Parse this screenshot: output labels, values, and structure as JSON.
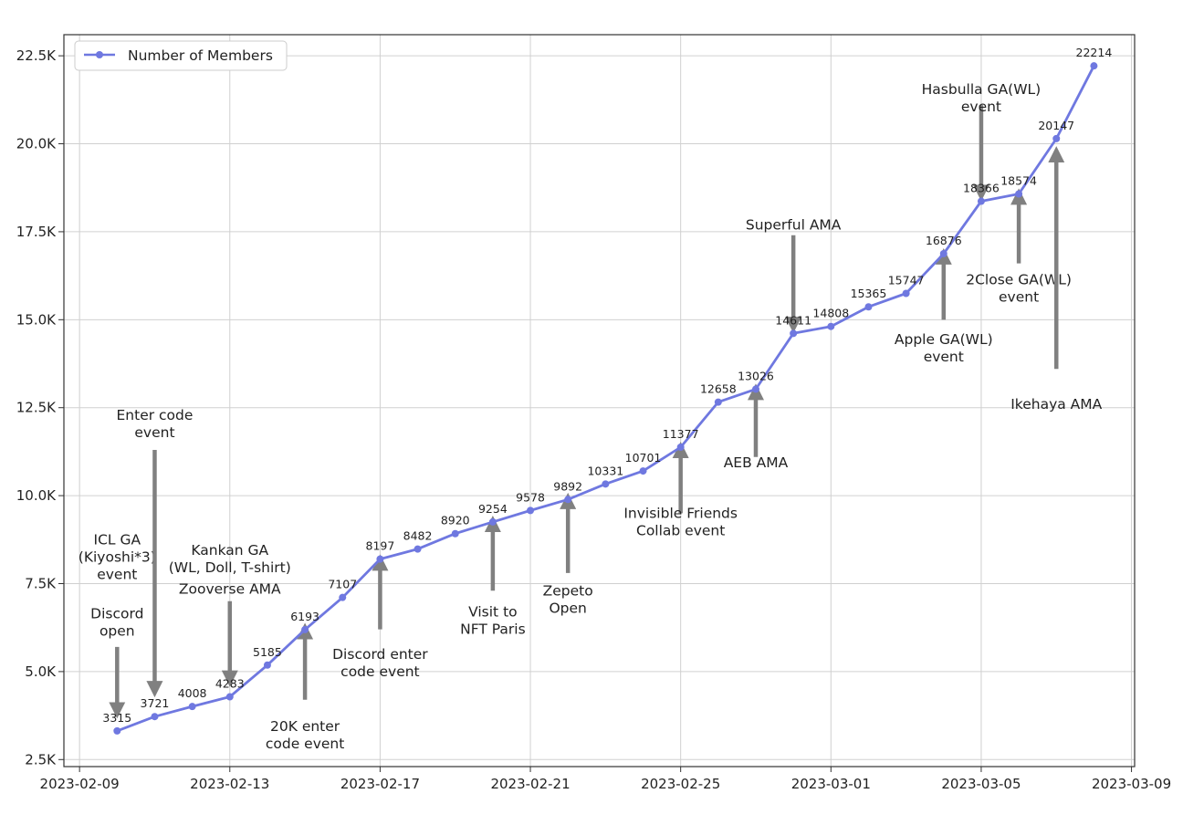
{
  "chart_data": {
    "type": "line",
    "x": [
      "2023-02-10",
      "2023-02-11",
      "2023-02-12",
      "2023-02-13",
      "2023-02-14",
      "2023-02-15",
      "2023-02-16",
      "2023-02-17",
      "2023-02-18",
      "2023-02-19",
      "2023-02-20",
      "2023-02-21",
      "2023-02-22",
      "2023-02-23",
      "2023-02-24",
      "2023-02-25",
      "2023-02-26",
      "2023-02-27",
      "2023-02-28",
      "2023-03-01",
      "2023-03-02",
      "2023-03-03",
      "2023-03-04",
      "2023-03-05",
      "2023-03-06",
      "2023-03-07",
      "2023-03-08"
    ],
    "series": [
      {
        "name": "Number of Members",
        "color": "#6f78e0",
        "values": [
          3315,
          3721,
          4008,
          4283,
          5185,
          6193,
          7107,
          8197,
          8482,
          8920,
          9254,
          9578,
          9892,
          10331,
          10701,
          11377,
          12658,
          13026,
          14611,
          14808,
          15365,
          15747,
          16876,
          18366,
          18574,
          20147,
          22214
        ]
      }
    ],
    "data_labels": [
      "3315",
      "3721",
      "4008",
      "4283",
      "5185",
      "6193",
      "7107",
      "8197",
      "8482",
      "8920",
      "9254",
      "9578",
      "9892",
      "10331",
      "10701",
      "11377",
      "12658",
      "13026",
      "14611",
      "14808",
      "15365",
      "15747",
      "16876",
      "18366",
      "18574",
      "20147",
      "22214"
    ],
    "xticks": [
      "2023-02-09",
      "2023-02-13",
      "2023-02-17",
      "2023-02-21",
      "2023-02-25",
      "2023-03-01",
      "2023-03-05",
      "2023-03-09"
    ],
    "yticks": [
      2500,
      5000,
      7500,
      10000,
      12500,
      15000,
      17500,
      20000,
      22500
    ],
    "ytick_labels": [
      "2.5K",
      "5.0K",
      "7.5K",
      "10.0K",
      "12.5K",
      "15.0K",
      "17.5K",
      "20.0K",
      "22.5K"
    ],
    "xlim": [
      "2023-02-08T14:00",
      "2023-03-09T02:00"
    ],
    "ylim": [
      2300,
      23100
    ],
    "grid": true,
    "legend": "upper-left",
    "annotations": [
      {
        "lines": [
          "Discord",
          "open"
        ],
        "x": "2023-02-10",
        "dir": "down",
        "text_y": 6900,
        "tail_y": 5700,
        "head_y": 3900
      },
      {
        "lines": [
          "ICL GA",
          "(Kiyoshi*3)",
          "event"
        ],
        "x": "2023-02-10",
        "dir": "none",
        "text_y": 9000
      },
      {
        "lines": [
          "Enter code",
          "event"
        ],
        "x": "2023-02-11",
        "dir": "down",
        "text_y": 12550,
        "tail_y": 11300,
        "head_y": 4500
      },
      {
        "lines": [
          "Kankan GA",
          "(WL, Doll, T-shirt)"
        ],
        "x": "2023-02-13",
        "dir": "none",
        "text_y": 8700
      },
      {
        "lines": [
          "Zooverse AMA"
        ],
        "x": "2023-02-13",
        "dir": "down",
        "text_y": 7600,
        "tail_y": 7000,
        "head_y": 4800
      },
      {
        "lines": [
          "20K enter",
          "code event"
        ],
        "x": "2023-02-15",
        "dir": "up",
        "text_y": 3700,
        "tail_y": 4200,
        "head_y": 6150
      },
      {
        "lines": [
          "Discord enter",
          "code event"
        ],
        "x": "2023-02-17",
        "dir": "up",
        "text_y": 5750,
        "tail_y": 6200,
        "head_y": 8100
      },
      {
        "lines": [
          "Visit to",
          "NFT Paris"
        ],
        "x": "2023-02-20",
        "dir": "up",
        "text_y": 6950,
        "tail_y": 7300,
        "head_y": 9200
      },
      {
        "lines": [
          "Zepeto",
          "Open"
        ],
        "x": "2023-02-22",
        "dir": "up",
        "text_y": 7550,
        "tail_y": 7800,
        "head_y": 9850
      },
      {
        "lines": [
          "Invisible Friends",
          "Collab event"
        ],
        "x": "2023-02-25",
        "dir": "up",
        "text_y": 9750,
        "tail_y": 9500,
        "head_y": 11300
      },
      {
        "lines": [
          "AEB AMA"
        ],
        "x": "2023-02-27",
        "dir": "up",
        "text_y": 11200,
        "tail_y": 11100,
        "head_y": 12950
      },
      {
        "lines": [
          "Superful AMA"
        ],
        "x": "2023-02-28",
        "dir": "down",
        "text_y": 17950,
        "tail_y": 17400,
        "head_y": 14850
      },
      {
        "lines": [
          "Apple GA(WL)",
          "event"
        ],
        "x": "2023-03-04",
        "dir": "up",
        "text_y": 14700,
        "tail_y": 15000,
        "head_y": 16800
      },
      {
        "lines": [
          "Hasbulla GA(WL)",
          "event"
        ],
        "x": "2023-03-05",
        "dir": "down",
        "text_y": 21800,
        "tail_y": 21100,
        "head_y": 18600
      },
      {
        "lines": [
          "2Close GA(WL)",
          "event"
        ],
        "x": "2023-03-06",
        "dir": "up",
        "text_y": 16400,
        "tail_y": 16600,
        "head_y": 18500
      },
      {
        "lines": [
          "Ikehaya AMA"
        ],
        "x": "2023-03-07",
        "dir": "up",
        "text_y": 12850,
        "tail_y": 13600,
        "head_y": 19700
      }
    ]
  }
}
